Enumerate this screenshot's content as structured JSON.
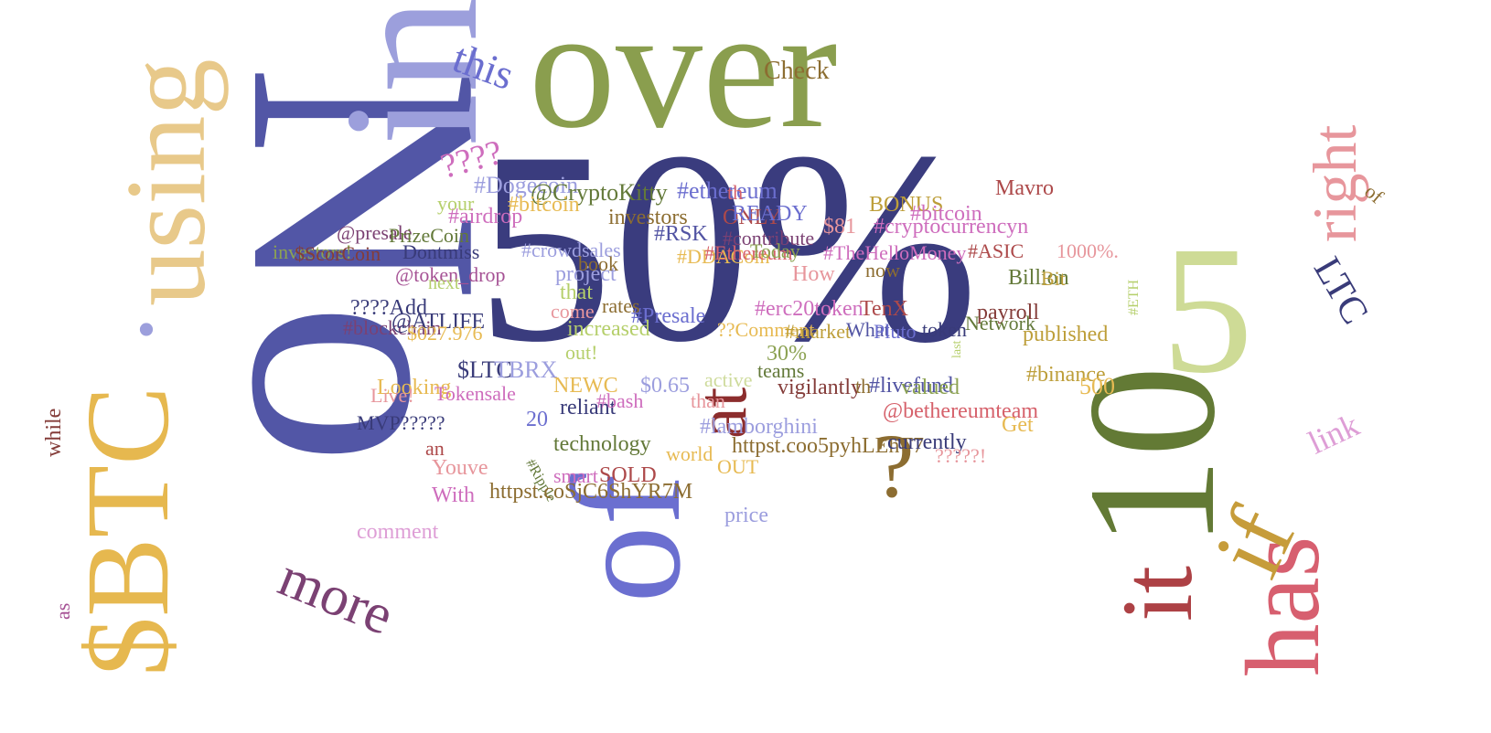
{
  "word_cloud": {
    "words": [
      {
        "text": "No",
        "color": "#5256a6"
      },
      {
        "text": "50%",
        "color": "#3a3c7e"
      },
      {
        "text": "over",
        "color": "#8a9e4e"
      },
      {
        "text": "in",
        "color": "#9c9fdc"
      },
      {
        "text": "using",
        "color": "#e8c98a"
      },
      {
        "text": "·",
        "color": "#9c9fdc"
      },
      {
        "text": "$BTC",
        "color": "#e6b84f"
      },
      {
        "text": "10",
        "color": "#637a35"
      },
      {
        "text": "5",
        "color": "#cedb96"
      },
      {
        "text": "of",
        "color": "#6b6fd0"
      },
      {
        "text": "has",
        "color": "#d75f6f"
      },
      {
        "text": "if",
        "color": "#c69c3a"
      },
      {
        "text": "it",
        "color": "#ad4145"
      },
      {
        "text": "right",
        "color": "#e7969c"
      },
      {
        "text": "more",
        "color": "#7b4173"
      },
      {
        "text": "at",
        "color": "#8c2d2d"
      },
      {
        "text": "?",
        "color": "#8c6d31"
      },
      {
        "text": "this",
        "color": "#6b6ecf"
      },
      {
        "text": "Check",
        "color": "#8c6d31"
      },
      {
        "text": "LTC",
        "color": "#393b79"
      },
      {
        "text": "link",
        "color": "#de9ed6"
      },
      {
        "text": "while",
        "color": "#843c39"
      },
      {
        "text": "as",
        "color": "#a55194"
      },
      {
        "text": "of",
        "color": "#8c6d31"
      },
      {
        "text": "????",
        "color": "#ce6dbd"
      },
      {
        "text": "#Dogecoin",
        "color": "#9c9ede"
      },
      {
        "text": "@CryptoKitty",
        "color": "#637939"
      },
      {
        "text": "#ethereum",
        "color": "#6b6ecf"
      },
      {
        "text": "#airdrop",
        "color": "#ce6dbd"
      },
      {
        "text": "#bitcoin",
        "color": "#e7ba52"
      },
      {
        "text": "investors",
        "color": "#8c6d31"
      },
      {
        "text": "ONLY",
        "color": "#ad494a"
      },
      {
        "text": "READY",
        "color": "#6b6ecf"
      },
      {
        "text": "your",
        "color": "#b5cf6b"
      },
      {
        "text": "th",
        "color": "#d6616b"
      },
      {
        "text": "BONUS",
        "color": "#bd9e39"
      },
      {
        "text": "Mavro",
        "color": "#ad494a"
      },
      {
        "text": "#bitcoin",
        "color": "#ce6dbd"
      },
      {
        "text": "$81",
        "color": "#e7969c"
      },
      {
        "text": "#cryptocurrencyn",
        "color": "#ce6dbd"
      },
      {
        "text": "@presale",
        "color": "#7b4173"
      },
      {
        "text": "PrizeCoin",
        "color": "#637939"
      },
      {
        "text": "investors!",
        "color": "#8ca252"
      },
      {
        "text": "$ScorCoin",
        "color": "#843c39"
      },
      {
        "text": "Dontmiss",
        "color": "#393b79"
      },
      {
        "text": "#crowdsales",
        "color": "#9c9ede"
      },
      {
        "text": "#RSK",
        "color": "#5254a3"
      },
      {
        "text": "#contribute",
        "color": "#7b4173"
      },
      {
        "text": "#DDACoin",
        "color": "#e7ba52"
      },
      {
        "text": "#Ethereum",
        "color": "#d6616b"
      },
      {
        "text": "Today",
        "color": "#8ca252"
      },
      {
        "text": "#TheHelloMoney",
        "color": "#ce6dbd"
      },
      {
        "text": "#ASIC",
        "color": "#ad494a"
      },
      {
        "text": "1000%.",
        "color": "#e7969c"
      },
      {
        "text": "@token_drop",
        "color": "#a55194"
      },
      {
        "text": "next",
        "color": "#b5cf6b"
      },
      {
        "text": "project",
        "color": "#9c9ede"
      },
      {
        "text": "book",
        "color": "#8c6d31"
      },
      {
        "text": "How",
        "color": "#e7969c"
      },
      {
        "text": "now",
        "color": "#8c6d31"
      },
      {
        "text": "Billion",
        "color": "#637939"
      },
      {
        "text": "Bit",
        "color": "#bd9e39"
      },
      {
        "text": "that",
        "color": "#b5cf6b"
      },
      {
        "text": "????Add",
        "color": "#393b79"
      },
      {
        "text": "come",
        "color": "#e7969c"
      },
      {
        "text": "rates",
        "color": "#8c6d31"
      },
      {
        "text": "#Presale",
        "color": "#6b6ecf"
      },
      {
        "text": "#erc20token",
        "color": "#ce6dbd"
      },
      {
        "text": "TenX",
        "color": "#ad494a"
      },
      {
        "text": "payroll",
        "color": "#843c39"
      },
      {
        "text": "Network",
        "color": "#637939"
      },
      {
        "text": "#ETH",
        "color": "#b5cf6b"
      },
      {
        "text": "#blockchain",
        "color": "#7b4173"
      },
      {
        "text": "@ATLIFE",
        "color": "#393b79"
      },
      {
        "text": "$027.976",
        "color": "#e7ba52"
      },
      {
        "text": "increased",
        "color": "#b5cf6b"
      },
      {
        "text": "??Comment",
        "color": "#e7ba52"
      },
      {
        "text": "#market",
        "color": "#bd9e39"
      },
      {
        "text": "What",
        "color": "#5254a3"
      },
      {
        "text": "Pluto",
        "color": "#6b6ecf"
      },
      {
        "text": "token",
        "color": "#393b79"
      },
      {
        "text": "published",
        "color": "#bd9e39"
      },
      {
        "text": "out!",
        "color": "#b5cf6b"
      },
      {
        "text": "30%",
        "color": "#8ca252"
      },
      {
        "text": "last",
        "color": "#b5cf6b"
      },
      {
        "text": "$LTC",
        "color": "#393b79"
      },
      {
        "text": "TBRX",
        "color": "#9c9ede"
      },
      {
        "text": "teams",
        "color": "#637939"
      },
      {
        "text": "#binance",
        "color": "#bd9e39"
      },
      {
        "text": "Looking",
        "color": "#e7ba52"
      },
      {
        "text": "Live!",
        "color": "#e7969c"
      },
      {
        "text": "Tokensale",
        "color": "#ce6dbd"
      },
      {
        "text": "NEWC",
        "color": "#e7ba52"
      },
      {
        "text": "$0.65",
        "color": "#9c9ede"
      },
      {
        "text": "active",
        "color": "#cedb9c"
      },
      {
        "text": "vigilantly",
        "color": "#843c39"
      },
      {
        "text": "th",
        "color": "#8c6d31"
      },
      {
        "text": "#livefund",
        "color": "#5254a3"
      },
      {
        "text": "valued",
        "color": "#8ca252"
      },
      {
        "text": "500",
        "color": "#e7ba52"
      },
      {
        "text": "reliant",
        "color": "#393b79"
      },
      {
        "text": "#bash",
        "color": "#ce6dbd"
      },
      {
        "text": "than",
        "color": "#e7969c"
      },
      {
        "text": "@bethereumteam",
        "color": "#d6616b"
      },
      {
        "text": "20",
        "color": "#6b6ecf"
      },
      {
        "text": "MVP?????",
        "color": "#393b79"
      },
      {
        "text": "#lamborghini",
        "color": "#9c9ede"
      },
      {
        "text": "Get",
        "color": "#e7ba52"
      },
      {
        "text": "an",
        "color": "#ad494a"
      },
      {
        "text": "technology",
        "color": "#637939"
      },
      {
        "text": "world",
        "color": "#e7ba52"
      },
      {
        "text": "httpst.coo5pyhLEhT7",
        "color": "#8c6d31"
      },
      {
        "text": "currently",
        "color": "#393b79"
      },
      {
        "text": "?????!",
        "color": "#e7969c"
      },
      {
        "text": "Youve",
        "color": "#e7969c"
      },
      {
        "text": "OUT",
        "color": "#e7ba52"
      },
      {
        "text": "#Ripple",
        "color": "#637939"
      },
      {
        "text": "smart",
        "color": "#ce6dbd"
      },
      {
        "text": "SOLD",
        "color": "#ad494a"
      },
      {
        "text": "With",
        "color": "#ce6dbd"
      },
      {
        "text": "httpst.coSjC6ShYR7M",
        "color": "#8c6d31"
      },
      {
        "text": "price",
        "color": "#9c9ede"
      },
      {
        "text": "comment",
        "color": "#de9ed6"
      }
    ]
  }
}
